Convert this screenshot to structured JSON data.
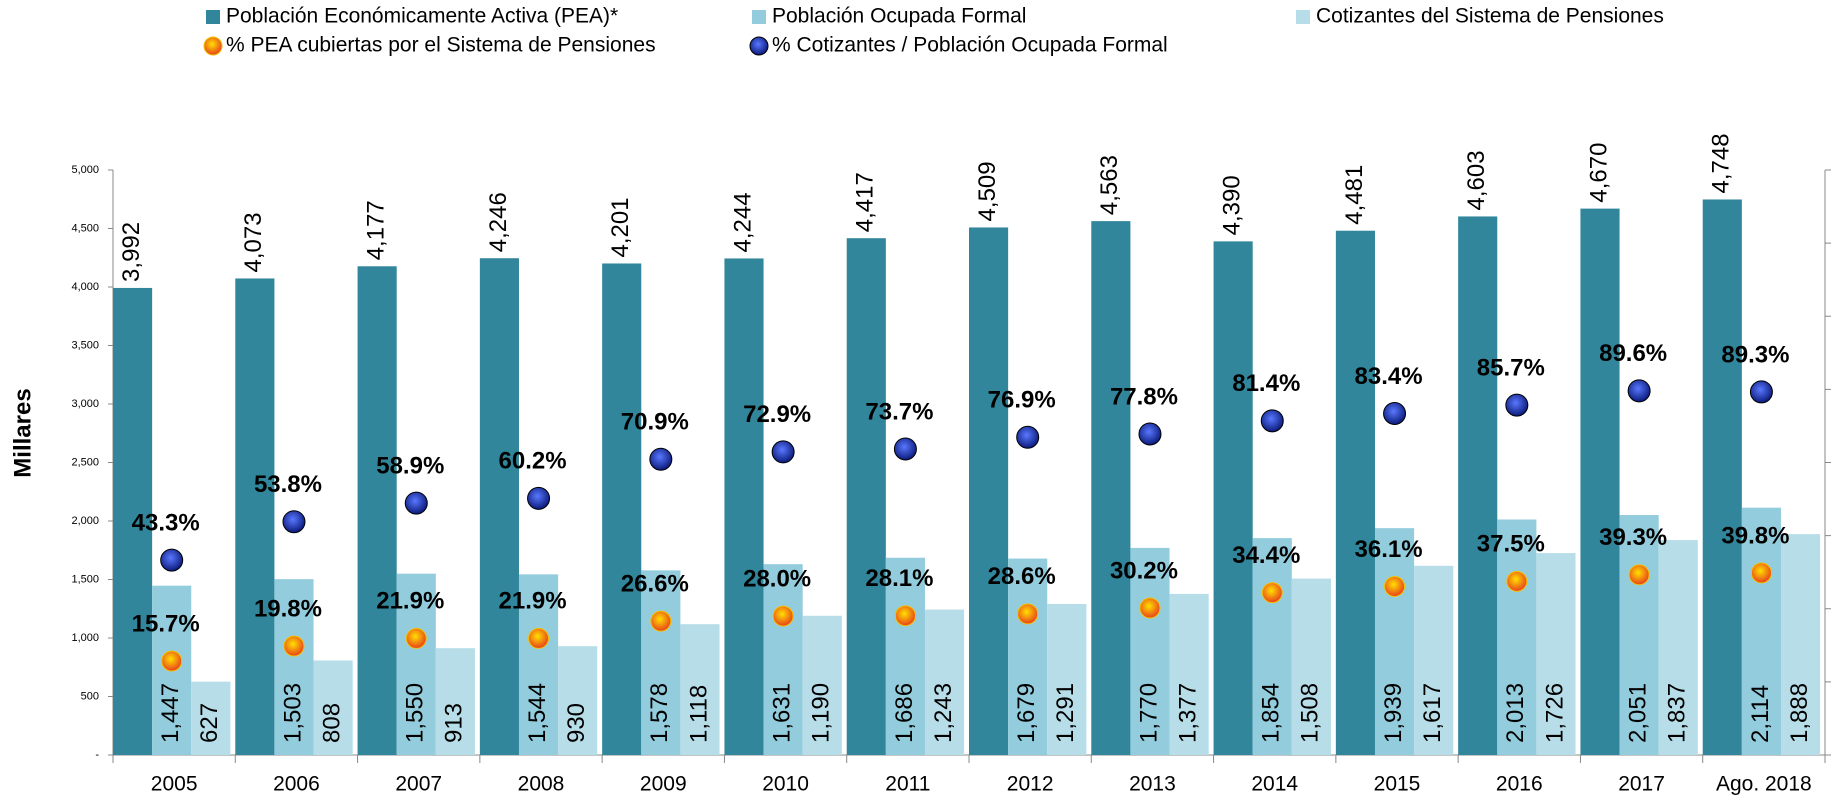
{
  "chart_data": {
    "type": "bar",
    "y_label": "Millares",
    "categories": [
      "2005",
      "2006",
      "2007",
      "2008",
      "2009",
      "2010",
      "2011",
      "2012",
      "2013",
      "2014",
      "2015",
      "2016",
      "2017",
      "Ago. 2018"
    ],
    "ylim": [
      0,
      5000
    ],
    "yticks": [
      {
        "value": 0,
        "label": "-"
      },
      500,
      {
        "value": 1000,
        "label": "1,000"
      },
      {
        "value": 1500,
        "label": "1,500"
      },
      {
        "value": 2000,
        "label": "2,000"
      },
      {
        "value": 2500,
        "label": "2,500"
      },
      {
        "value": 3000,
        "label": "3,000"
      },
      {
        "value": 3500,
        "label": "3,500"
      },
      {
        "value": 4000,
        "label": "4,000"
      },
      {
        "value": 4500,
        "label": "4,500"
      },
      {
        "value": 5000,
        "label": "5,000"
      }
    ],
    "y2lim": [
      -10,
      150
    ],
    "y2ticks": [
      -10,
      10,
      30,
      50,
      70,
      90,
      110,
      130,
      150
    ],
    "series": [
      {
        "name": "Población Económicamente Activa (PEA)*",
        "color": "#31869b",
        "type": "bar",
        "values": [
          3992,
          4073,
          4177,
          4246,
          4201,
          4244,
          4417,
          4509,
          4563,
          4390,
          4481,
          4603,
          4670,
          4748
        ],
        "value_labels": [
          "3,992",
          "4,073",
          "4,177",
          "4,246",
          "4,201",
          "4,244",
          "4,417",
          "4,509",
          "4,563",
          "4,390",
          "4,481",
          "4,603",
          "4,670",
          "4,748"
        ]
      },
      {
        "name": "Población Ocupada Formal",
        "color": "#93cddd",
        "type": "bar",
        "values": [
          1447,
          1503,
          1550,
          1544,
          1578,
          1631,
          1686,
          1679,
          1770,
          1854,
          1939,
          2013,
          2051,
          2114
        ],
        "value_labels": [
          "1,447",
          "1,503",
          "1,550",
          "1,544",
          "1,578",
          "1,631",
          "1,686",
          "1,679",
          "1,770",
          "1,854",
          "1,939",
          "2,013",
          "2,051",
          "2,114"
        ]
      },
      {
        "name": "Cotizantes del Sistema de Pensiones",
        "color": "#b7dee8",
        "type": "bar",
        "values": [
          627,
          808,
          913,
          930,
          1118,
          1190,
          1243,
          1291,
          1377,
          1508,
          1617,
          1726,
          1837,
          1888
        ],
        "value_labels": [
          "627",
          "808",
          "913",
          "930",
          "1,118",
          "1,190",
          "1,243",
          "1,291",
          "1,377",
          "1,508",
          "1,617",
          "1,726",
          "1,837",
          "1,888"
        ]
      },
      {
        "name": "% PEA cubiertas por el Sistema de Pensiones",
        "color": "#e8401c",
        "type": "scatter",
        "axis": "y2",
        "values": [
          15.7,
          19.8,
          21.9,
          21.9,
          26.6,
          28.0,
          28.1,
          28.6,
          30.2,
          34.4,
          36.1,
          37.5,
          39.3,
          39.8
        ],
        "value_labels": [
          "15.7%",
          "19.8%",
          "21.9%",
          "21.9%",
          "26.6%",
          "28.0%",
          "28.1%",
          "28.6%",
          "30.2%",
          "34.4%",
          "36.1%",
          "37.5%",
          "39.3%",
          "39.8%"
        ]
      },
      {
        "name": "% Cotizantes / Población Ocupada Formal",
        "color": "#0a1a7a",
        "type": "scatter",
        "axis": "y2",
        "values": [
          43.3,
          53.8,
          58.9,
          60.2,
          70.9,
          72.9,
          73.7,
          76.9,
          77.8,
          81.4,
          83.4,
          85.7,
          89.6,
          89.3
        ],
        "value_labels": [
          "43.3%",
          "53.8%",
          "58.9%",
          "60.2%",
          "70.9%",
          "72.9%",
          "73.7%",
          "76.9%",
          "77.8%",
          "81.4%",
          "83.4%",
          "85.7%",
          "89.6%",
          "89.3%"
        ]
      }
    ]
  }
}
